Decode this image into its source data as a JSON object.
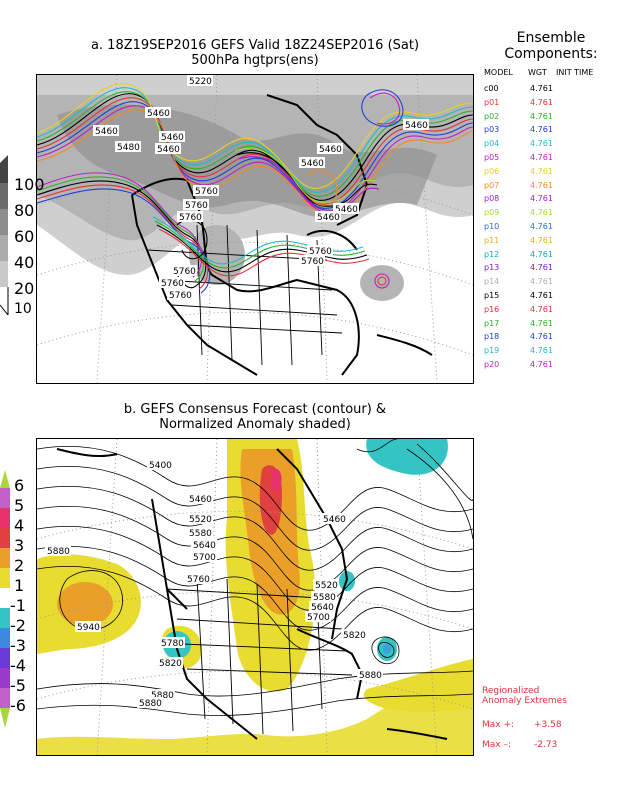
{
  "panel_a": {
    "title_line1": "a. 18Z19SEP2016 GEFS Valid 18Z24SEP2016 (Sat)",
    "title_line2": "500hPa hgtprs(ens)",
    "contour_labels": [
      "5220",
      "5460",
      "5460",
      "5460",
      "5480",
      "5460",
      "5460",
      "5460",
      "5760",
      "5760",
      "5760",
      "5460",
      "5460",
      "5460",
      "5760",
      "5760",
      "5760",
      "5760",
      "5760"
    ],
    "colorbar": [
      "100",
      "80",
      "60",
      "40",
      "20",
      "10"
    ]
  },
  "ensemble": {
    "title_line1": "Ensemble",
    "title_line2": "Components:",
    "col_model": "MODEL",
    "col_wgt": "WGT",
    "col_init": "INIT TIME",
    "members": [
      {
        "name": "c00",
        "wgt": "4.761",
        "color": "#000000"
      },
      {
        "name": "p01",
        "wgt": "4.761",
        "color": "#e8303a"
      },
      {
        "name": "p02",
        "wgt": "4.761",
        "color": "#2db22d"
      },
      {
        "name": "p03",
        "wgt": "4.761",
        "color": "#1f3fd8"
      },
      {
        "name": "p04",
        "wgt": "4.761",
        "color": "#23b9c8"
      },
      {
        "name": "p05",
        "wgt": "4.761",
        "color": "#c020c0"
      },
      {
        "name": "p06",
        "wgt": "4.761",
        "color": "#e8d020"
      },
      {
        "name": "p07",
        "wgt": "4.761",
        "color": "#f08a20"
      },
      {
        "name": "p08",
        "wgt": "4.761",
        "color": "#9a1fd0"
      },
      {
        "name": "p09",
        "wgt": "4.761",
        "color": "#a8d838"
      },
      {
        "name": "p10",
        "wgt": "4.761",
        "color": "#1f6fd8"
      },
      {
        "name": "p11",
        "wgt": "4.761",
        "color": "#e8b020"
      },
      {
        "name": "p12",
        "wgt": "4.761",
        "color": "#10a8a8"
      },
      {
        "name": "p13",
        "wgt": "4.761",
        "color": "#7020c0"
      },
      {
        "name": "p14",
        "wgt": "4.761",
        "color": "#b0b0b0"
      },
      {
        "name": "p15",
        "wgt": "4.761",
        "color": "#000000"
      },
      {
        "name": "p16",
        "wgt": "4.761",
        "color": "#e8303a"
      },
      {
        "name": "p17",
        "wgt": "4.761",
        "color": "#2db22d"
      },
      {
        "name": "p18",
        "wgt": "4.761",
        "color": "#1f3fd8"
      },
      {
        "name": "p19",
        "wgt": "4.761",
        "color": "#23b9c8"
      },
      {
        "name": "p20",
        "wgt": "4.761",
        "color": "#c020c0"
      }
    ]
  },
  "panel_b": {
    "title_line1": "b. GEFS Consensus Forecast (contour) &",
    "title_line2": "Normalized Anomaly shaded)",
    "contour_labels": [
      "5400",
      "5460",
      "5520",
      "5580",
      "5640",
      "5700",
      "5760",
      "5880",
      "5940",
      "5460",
      "5520",
      "5580",
      "5640",
      "5700",
      "5760",
      "5820",
      "5880",
      "5780",
      "5820",
      "5880",
      "5880"
    ],
    "colorbar": [
      "6",
      "5",
      "4",
      "3",
      "2",
      "1",
      "-1",
      "-2",
      "-3",
      "-4",
      "-5",
      "-6"
    ],
    "extremes_title1": "Regionalized",
    "extremes_title2": "Anomaly Extremes",
    "max_plus_label": "Max +:",
    "max_plus_value": "+3.58",
    "max_minus_label": "Max –:",
    "max_minus_value": "-2.73"
  }
}
